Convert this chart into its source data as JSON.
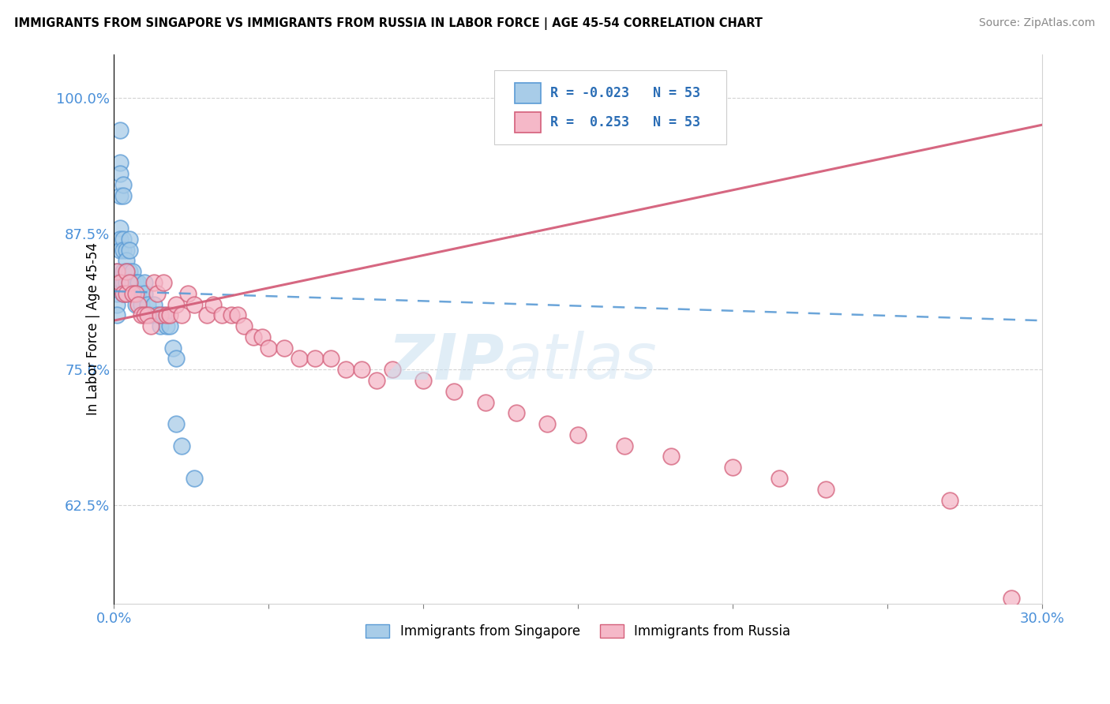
{
  "title": "IMMIGRANTS FROM SINGAPORE VS IMMIGRANTS FROM RUSSIA IN LABOR FORCE | AGE 45-54 CORRELATION CHART",
  "source": "Source: ZipAtlas.com",
  "ylabel": "In Labor Force | Age 45-54",
  "xlim": [
    0.0,
    0.3
  ],
  "ylim": [
    0.535,
    1.04
  ],
  "yticks": [
    0.625,
    0.75,
    0.875,
    1.0
  ],
  "ytick_labels": [
    "62.5%",
    "75.0%",
    "87.5%",
    "100.0%"
  ],
  "xticks": [
    0.0,
    0.05,
    0.1,
    0.15,
    0.2,
    0.25,
    0.3
  ],
  "r_singapore": -0.023,
  "n_singapore": 53,
  "r_russia": 0.253,
  "n_russia": 53,
  "color_singapore": "#a8cce8",
  "color_russia": "#f5b8c8",
  "line_color_singapore": "#5b9bd5",
  "line_color_russia": "#d45f7a",
  "background_color": "#ffffff",
  "sg_line_x0": 0.0,
  "sg_line_y0": 0.822,
  "sg_line_x1": 0.3,
  "sg_line_y1": 0.795,
  "ru_line_x0": 0.0,
  "ru_line_y0": 0.795,
  "ru_line_x1": 0.3,
  "ru_line_y1": 0.975,
  "singapore_x": [
    0.001,
    0.001,
    0.001,
    0.001,
    0.001,
    0.002,
    0.002,
    0.002,
    0.002,
    0.002,
    0.002,
    0.002,
    0.003,
    0.003,
    0.003,
    0.003,
    0.003,
    0.003,
    0.003,
    0.004,
    0.004,
    0.004,
    0.004,
    0.004,
    0.005,
    0.005,
    0.005,
    0.005,
    0.006,
    0.006,
    0.006,
    0.007,
    0.007,
    0.007,
    0.008,
    0.008,
    0.009,
    0.009,
    0.01,
    0.01,
    0.011,
    0.012,
    0.013,
    0.014,
    0.015,
    0.016,
    0.017,
    0.018,
    0.019,
    0.02,
    0.02,
    0.022,
    0.026
  ],
  "singapore_y": [
    0.84,
    0.83,
    0.82,
    0.81,
    0.8,
    0.97,
    0.94,
    0.93,
    0.91,
    0.88,
    0.87,
    0.86,
    0.92,
    0.91,
    0.87,
    0.86,
    0.84,
    0.83,
    0.82,
    0.86,
    0.85,
    0.84,
    0.83,
    0.82,
    0.87,
    0.86,
    0.84,
    0.83,
    0.84,
    0.83,
    0.82,
    0.83,
    0.82,
    0.81,
    0.83,
    0.82,
    0.82,
    0.81,
    0.83,
    0.82,
    0.81,
    0.8,
    0.81,
    0.8,
    0.79,
    0.8,
    0.79,
    0.79,
    0.77,
    0.76,
    0.7,
    0.68,
    0.65
  ],
  "russia_x": [
    0.001,
    0.002,
    0.003,
    0.004,
    0.004,
    0.005,
    0.006,
    0.007,
    0.008,
    0.009,
    0.01,
    0.011,
    0.012,
    0.013,
    0.014,
    0.015,
    0.016,
    0.017,
    0.018,
    0.02,
    0.022,
    0.024,
    0.026,
    0.03,
    0.032,
    0.035,
    0.038,
    0.04,
    0.042,
    0.045,
    0.048,
    0.05,
    0.055,
    0.06,
    0.065,
    0.07,
    0.075,
    0.08,
    0.085,
    0.09,
    0.1,
    0.11,
    0.12,
    0.13,
    0.14,
    0.15,
    0.165,
    0.18,
    0.2,
    0.215,
    0.23,
    0.27,
    0.29
  ],
  "russia_y": [
    0.84,
    0.83,
    0.82,
    0.84,
    0.82,
    0.83,
    0.82,
    0.82,
    0.81,
    0.8,
    0.8,
    0.8,
    0.79,
    0.83,
    0.82,
    0.8,
    0.83,
    0.8,
    0.8,
    0.81,
    0.8,
    0.82,
    0.81,
    0.8,
    0.81,
    0.8,
    0.8,
    0.8,
    0.79,
    0.78,
    0.78,
    0.77,
    0.77,
    0.76,
    0.76,
    0.76,
    0.75,
    0.75,
    0.74,
    0.75,
    0.74,
    0.73,
    0.72,
    0.71,
    0.7,
    0.69,
    0.68,
    0.67,
    0.66,
    0.65,
    0.64,
    0.63,
    0.54
  ]
}
